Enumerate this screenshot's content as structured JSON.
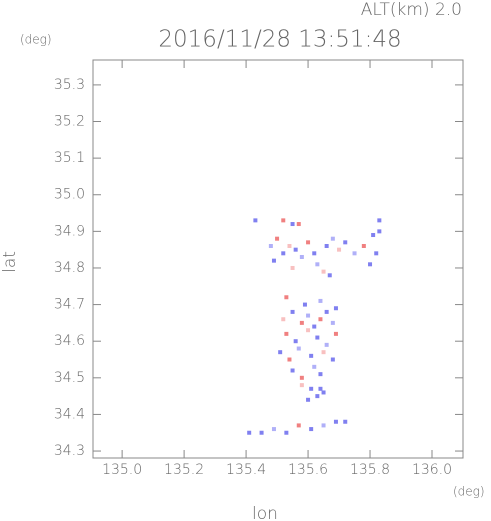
{
  "chart_data": {
    "type": "scatter",
    "title": "2016/11/28 13:51:48",
    "annotation": "ALT(km) 2.0",
    "y_unit": "(deg)",
    "x_unit": "(deg)",
    "xlabel": "lon",
    "ylabel": "lat",
    "xlim": [
      134.906,
      136.1
    ],
    "ylim": [
      34.281,
      35.368
    ],
    "xticks": [
      {
        "value": 135.0,
        "label": "135.0"
      },
      135.2,
      135.4,
      135.6,
      135.8,
      {
        "value": 136.0,
        "label": "136.0"
      }
    ],
    "yticks": [
      34.3,
      34.4,
      34.5,
      34.6,
      34.7,
      34.8,
      34.9,
      {
        "value": 35.0,
        "label": "35.0"
      },
      35.1,
      35.2,
      35.3
    ],
    "x": [
      135.43,
      135.52,
      135.55,
      135.57,
      135.83,
      135.83,
      135.48,
      135.5,
      135.52,
      135.54,
      135.56,
      135.58,
      135.6,
      135.62,
      135.66,
      135.68,
      135.7,
      135.72,
      135.75,
      135.78,
      135.81,
      135.82,
      135.49,
      135.55,
      135.63,
      135.65,
      135.67,
      135.8,
      135.53,
      135.59,
      135.64,
      135.69,
      135.52,
      135.55,
      135.58,
      135.6,
      135.62,
      135.64,
      135.66,
      135.68,
      135.53,
      135.56,
      135.6,
      135.63,
      135.66,
      135.69,
      135.51,
      135.54,
      135.57,
      135.61,
      135.65,
      135.68,
      135.55,
      135.58,
      135.62,
      135.64,
      135.58,
      135.61,
      135.64,
      135.6,
      135.63,
      135.65,
      135.41,
      135.45,
      135.49,
      135.53,
      135.57,
      135.61,
      135.65,
      135.69,
      135.72
    ],
    "values": [
      34.93,
      34.93,
      34.92,
      34.92,
      34.93,
      34.9,
      34.86,
      34.88,
      34.84,
      34.86,
      34.85,
      34.83,
      34.87,
      34.84,
      34.86,
      34.88,
      34.85,
      34.87,
      34.84,
      34.86,
      34.89,
      34.84,
      34.82,
      34.8,
      34.81,
      34.79,
      34.78,
      34.81,
      34.72,
      34.7,
      34.71,
      34.69,
      34.66,
      34.68,
      34.65,
      34.67,
      34.64,
      34.66,
      34.68,
      34.65,
      34.62,
      34.6,
      34.63,
      34.61,
      34.59,
      34.62,
      34.57,
      34.55,
      34.58,
      34.56,
      34.57,
      34.55,
      34.52,
      34.5,
      34.53,
      34.51,
      34.48,
      34.47,
      34.47,
      34.44,
      34.45,
      34.46,
      34.35,
      34.35,
      34.36,
      34.35,
      34.37,
      34.36,
      34.37,
      34.38,
      34.38
    ],
    "colors": [
      "#8080f0",
      "#f08080",
      "#8080f0",
      "#f08080",
      "#8080f0",
      "#8080f0",
      "#b0b0f8",
      "#f08080",
      "#8080f0",
      "#f8c0c0",
      "#8080f0",
      "#b0b0f8",
      "#f08080",
      "#8080f0",
      "#8080f0",
      "#b0b0f8",
      "#f8c0c0",
      "#8080f0",
      "#b0b0f8",
      "#f08080",
      "#8080f0",
      "#8080f0",
      "#8080f0",
      "#f8c0c0",
      "#b0b0f8",
      "#f8c0c0",
      "#8080f0",
      "#8080f0",
      "#f08080",
      "#8080f0",
      "#b0b0f8",
      "#8080f0",
      "#f8c0c0",
      "#8080f0",
      "#f08080",
      "#b0b0f8",
      "#8080f0",
      "#f08080",
      "#8080f0",
      "#b0b0f8",
      "#f08080",
      "#8080f0",
      "#f8c0c0",
      "#8080f0",
      "#b0b0f8",
      "#f08080",
      "#8080f0",
      "#f08080",
      "#b0b0f8",
      "#8080f0",
      "#f8c0c0",
      "#8080f0",
      "#8080f0",
      "#f08080",
      "#b0b0f8",
      "#8080f0",
      "#f8c0c0",
      "#8080f0",
      "#8080f0",
      "#8080f0",
      "#8080f0",
      "#8080f0",
      "#8080f0",
      "#8080f0",
      "#b0b0f8",
      "#8080f0",
      "#f08080",
      "#8080f0",
      "#b0b0f8",
      "#8080f0",
      "#8080f0"
    ]
  }
}
